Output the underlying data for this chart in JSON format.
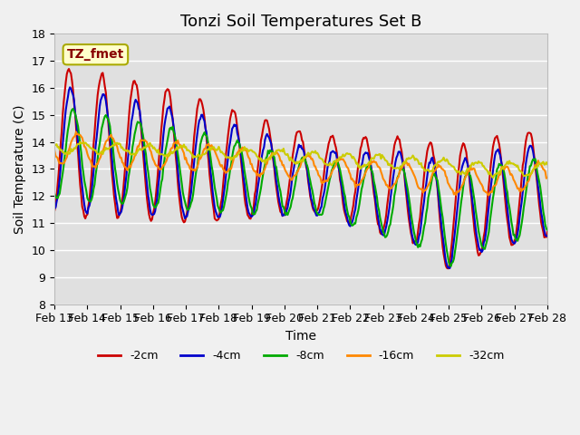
{
  "title": "Tonzi Soil Temperatures Set B",
  "xlabel": "Time",
  "ylabel": "Soil Temperature (C)",
  "ylim": [
    8.0,
    18.0
  ],
  "yticks": [
    8.0,
    9.0,
    10.0,
    11.0,
    12.0,
    13.0,
    14.0,
    15.0,
    16.0,
    17.0,
    18.0
  ],
  "x_labels": [
    "Feb 13",
    "Feb 14",
    "Feb 15",
    "Feb 16",
    "Feb 17",
    "Feb 18",
    "Feb 19",
    "Feb 20",
    "Feb 21",
    "Feb 22",
    "Feb 23",
    "Feb 24",
    "Feb 25",
    "Feb 26",
    "Feb 27",
    "Feb 28"
  ],
  "colors": {
    "-2cm": "#cc0000",
    "-4cm": "#0000cc",
    "-8cm": "#00aa00",
    "-16cm": "#ff8800",
    "-32cm": "#cccc00"
  },
  "series_labels": [
    "-2cm",
    "-4cm",
    "-8cm",
    "-16cm",
    "-32cm"
  ],
  "annotation_text": "TZ_fmet",
  "annotation_box_facecolor": "#ffffcc",
  "annotation_box_edgecolor": "#aaaa00",
  "annotation_text_color": "#880000",
  "plot_bg_color": "#e0e0e0",
  "fig_bg_color": "#f0f0f0",
  "grid_color": "#ffffff",
  "title_fontsize": 13,
  "axis_label_fontsize": 10,
  "tick_fontsize": 9,
  "legend_fontsize": 9,
  "linewidth": 1.5,
  "n_points": 481,
  "n_days": 16
}
